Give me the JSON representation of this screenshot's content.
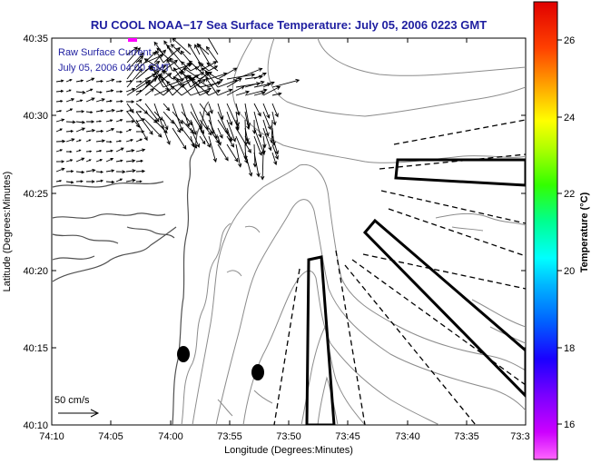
{
  "chart_data": {
    "type": "map",
    "title": "RU COOL  NOAA−17  Sea Surface Temperature:  July 05, 2006 0223 GMT",
    "xlabel": "Longitude (Degrees:Minutes)",
    "ylabel": "Latitude (Degrees:Minutes)",
    "x_ticks": [
      "74:10",
      "74:05",
      "74:00",
      "73:55",
      "73:50",
      "73:45",
      "73:40",
      "73:35",
      "73:3"
    ],
    "y_ticks": [
      "40:35",
      "40:30",
      "40:25",
      "40:20",
      "40:15",
      "40:10"
    ],
    "xlim": [
      "74:10",
      "73:30"
    ],
    "ylim": [
      "40:10",
      "40:35"
    ],
    "annotation": {
      "line1": "Raw Surface Current",
      "line2": "July 05, 2006 04:00 GMT"
    },
    "scale_label": "50 cm/s",
    "colorbar": {
      "label": "Temperature (°C)",
      "ticks": [
        "26",
        "24",
        "22",
        "20",
        "18",
        "16"
      ],
      "range": [
        15,
        27
      ]
    },
    "grid": false
  },
  "colors": {
    "title": "#1e1ea0",
    "annotation": "#1e1ea0",
    "contour": "#8c8c8c",
    "coast": "#505050",
    "vectors": "#000000"
  }
}
